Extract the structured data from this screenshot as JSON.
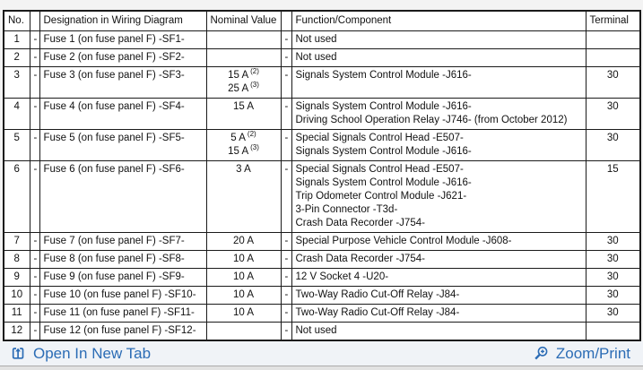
{
  "table": {
    "headers": {
      "no": "No.",
      "sep1": "",
      "designation": "Designation in Wiring Diagram",
      "nominal": "Nominal Value",
      "sep2": "",
      "function": "Function/Component",
      "terminal": "Terminal"
    },
    "rows": [
      {
        "no": "1",
        "sep1": "-",
        "designation": "Fuse 1 (on fuse panel F) -SF1-",
        "nominal": [],
        "sep2": "-",
        "function": [
          "Not used"
        ],
        "terminal": ""
      },
      {
        "no": "2",
        "sep1": "-",
        "designation": "Fuse 2 (on fuse panel F) -SF2-",
        "nominal": [],
        "sep2": "-",
        "function": [
          "Not used"
        ],
        "terminal": ""
      },
      {
        "no": "3",
        "sep1": "-",
        "designation": "Fuse 3 (on fuse panel F) -SF3-",
        "nominal": [
          {
            "value": "15 A",
            "note": "(2)"
          },
          {
            "value": "25 A",
            "note": "(3)"
          }
        ],
        "sep2": "-",
        "function": [
          "Signals System Control Module -J616-"
        ],
        "terminal": "30"
      },
      {
        "no": "4",
        "sep1": "-",
        "designation": "Fuse 4 (on fuse panel F) -SF4-",
        "nominal": [
          {
            "value": "15 A",
            "note": ""
          }
        ],
        "sep2": "-",
        "function": [
          "Signals System Control Module -J616-",
          "Driving School Operation Relay -J746- (from October 2012)"
        ],
        "terminal": "30"
      },
      {
        "no": "5",
        "sep1": "-",
        "designation": "Fuse 5 (on fuse panel F) -SF5-",
        "nominal": [
          {
            "value": "5 A",
            "note": "(2)"
          },
          {
            "value": "15 A",
            "note": "(3)"
          }
        ],
        "sep2": "-",
        "function": [
          "Special Signals Control Head -E507-",
          "Signals System Control Module -J616-"
        ],
        "terminal": "30"
      },
      {
        "no": "6",
        "sep1": "-",
        "designation": "Fuse 6 (on fuse panel F) -SF6-",
        "nominal": [
          {
            "value": "3 A",
            "note": ""
          }
        ],
        "sep2": "-",
        "function": [
          "Special Signals Control Head -E507-",
          "Signals System Control Module -J616-",
          "Trip Odometer Control Module -J621-",
          "3-Pin Connector -T3d-",
          "Crash Data Recorder -J754-"
        ],
        "terminal": "15"
      },
      {
        "no": "7",
        "sep1": "-",
        "designation": "Fuse 7 (on fuse panel F) -SF7-",
        "nominal": [
          {
            "value": "20 A",
            "note": ""
          }
        ],
        "sep2": "-",
        "function": [
          "Special Purpose Vehicle Control Module -J608-"
        ],
        "terminal": "30"
      },
      {
        "no": "8",
        "sep1": "-",
        "designation": "Fuse 8 (on fuse panel F) -SF8-",
        "nominal": [
          {
            "value": "10 A",
            "note": ""
          }
        ],
        "sep2": "-",
        "function": [
          "Crash Data Recorder -J754-"
        ],
        "terminal": "30"
      },
      {
        "no": "9",
        "sep1": "-",
        "designation": "Fuse 9 (on fuse panel F) -SF9-",
        "nominal": [
          {
            "value": "10 A",
            "note": ""
          }
        ],
        "sep2": "-",
        "function": [
          "12 V Socket 4 -U20-"
        ],
        "terminal": "30"
      },
      {
        "no": "10",
        "sep1": "-",
        "designation": "Fuse 10 (on fuse panel F) -SF10-",
        "nominal": [
          {
            "value": "10 A",
            "note": ""
          }
        ],
        "sep2": "-",
        "function": [
          "Two-Way Radio Cut-Off Relay -J84-"
        ],
        "terminal": "30"
      },
      {
        "no": "11",
        "sep1": "-",
        "designation": "Fuse 11 (on fuse panel F) -SF11-",
        "nominal": [
          {
            "value": "10 A",
            "note": ""
          }
        ],
        "sep2": "-",
        "function": [
          "Two-Way Radio Cut-Off Relay -J84-"
        ],
        "terminal": "30"
      },
      {
        "no": "12",
        "sep1": "-",
        "designation": "Fuse 12 (on fuse panel F) -SF12-",
        "nominal": [],
        "sep2": "-",
        "function": [
          "Not used"
        ],
        "terminal": ""
      }
    ]
  },
  "footer": {
    "open_in_new_tab_label": "Open In New Tab",
    "zoom_print_label": "Zoom/Print",
    "link_color": "#2b6cb5"
  }
}
